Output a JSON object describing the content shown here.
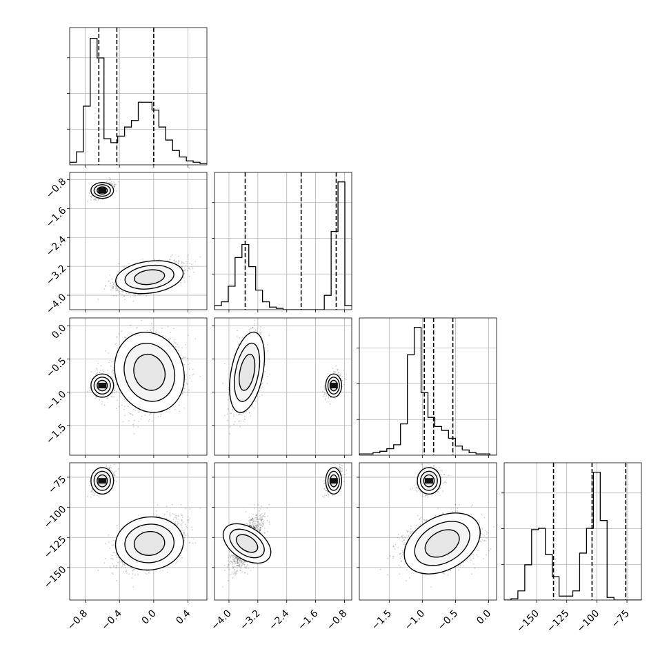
{
  "chart_data": {
    "type": "corner",
    "grid": true,
    "params": [
      {
        "ticks": [
          "−0.8",
          "−0.4",
          "0.0",
          "0.4"
        ],
        "tick_values": [
          -0.8,
          -0.4,
          0.0,
          0.4
        ],
        "range": [
          -0.98,
          0.62
        ],
        "quantiles": [
          -0.64,
          -0.43,
          0.0
        ]
      },
      {
        "ticks": [
          "−4.0",
          "−3.2",
          "−2.4",
          "−1.6",
          "−0.8"
        ],
        "tick_values": [
          -4.0,
          -3.2,
          -2.4,
          -1.6,
          -0.8
        ],
        "range": [
          -4.4,
          -0.6
        ],
        "quantiles": [
          -3.55,
          -2.0,
          -1.03
        ]
      },
      {
        "ticks": [
          "−1.5",
          "−1.0",
          "−0.5",
          "0.0"
        ],
        "tick_values": [
          -1.5,
          -1.0,
          -0.5,
          0.0
        ],
        "range": [
          -1.95,
          0.12
        ],
        "quantiles": [
          -0.97,
          -0.83,
          -0.54
        ]
      },
      {
        "ticks": [
          "−150",
          "−125",
          "−100",
          "−75"
        ],
        "tick_values": [
          -150,
          -125,
          -100,
          -75
        ],
        "range": [
          -177,
          -63
        ],
        "quantiles": [
          -136,
          -104,
          -76
        ]
      }
    ],
    "histograms": [
      {
        "bins": 20,
        "counts": [
          0.02,
          0.1,
          0.45,
          0.97,
          0.82,
          0.2,
          0.17,
          0.22,
          0.29,
          0.34,
          0.48,
          0.48,
          0.42,
          0.29,
          0.19,
          0.11,
          0.06,
          0.03,
          0.02,
          0.01
        ]
      },
      {
        "bins": 20,
        "counts": [
          0.03,
          0.06,
          0.18,
          0.4,
          0.5,
          0.33,
          0.15,
          0.06,
          0.02,
          0.01,
          0,
          0,
          0,
          0,
          0,
          0,
          0.11,
          0.6,
          0.98,
          0.03
        ]
      },
      {
        "bins": 20,
        "counts": [
          0.01,
          0.01,
          0.02,
          0.03,
          0.05,
          0.08,
          0.24,
          0.77,
          0.98,
          0.48,
          0.29,
          0.22,
          0.19,
          0.13,
          0.07,
          0.04,
          0.02,
          0.01,
          0.01,
          0
        ]
      },
      {
        "bins": 20,
        "counts": [
          0.0,
          0.01,
          0.07,
          0.27,
          0.54,
          0.55,
          0.35,
          0.18,
          0.03,
          0.03,
          0.07,
          0.36,
          0.55,
          0.98,
          0.61,
          0.02,
          0,
          0,
          0,
          0
        ]
      }
    ],
    "modes": [
      {
        "weight": 0.3,
        "mean": [
          -0.6,
          -1.1,
          -0.9,
          -78
        ],
        "sd": [
          0.06,
          0.1,
          0.08,
          5
        ]
      },
      {
        "weight": 0.7,
        "mean": [
          -0.05,
          -3.5,
          -0.7,
          -130
        ],
        "sd": [
          0.18,
          0.2,
          0.28,
          10
        ]
      }
    ],
    "contour_levels": [
      0.4,
      0.7,
      0.9
    ]
  }
}
